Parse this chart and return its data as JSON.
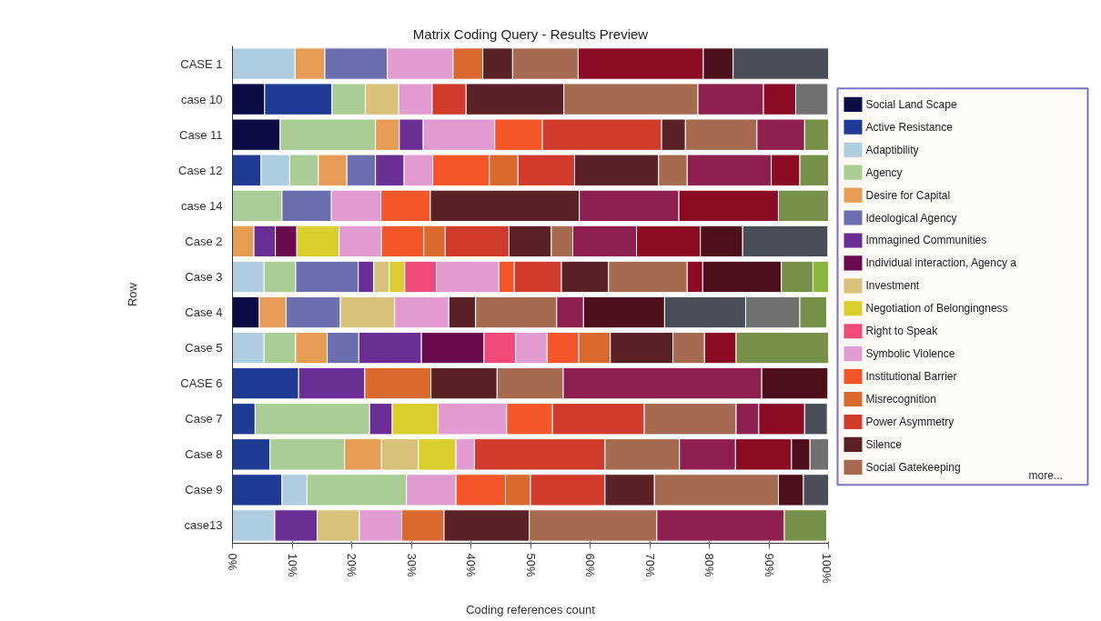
{
  "chart_data": {
    "type": "bar",
    "orientation": "horizontal",
    "stacked": true,
    "title": "Matrix Coding Query - Results Preview",
    "xlabel": "Coding references count",
    "ylabel": "Row",
    "categories": [
      "CASE 1",
      "case 10",
      "Case 11",
      "Case 12",
      "case 14",
      "Case 2",
      "Case 3",
      "Case 4",
      "Case 5",
      "CASE 6",
      "Case 7",
      "Case 8",
      "Case 9",
      "case13"
    ],
    "xlim": [
      0,
      100
    ],
    "xticks": [
      {
        "value": 0,
        "label": "0%"
      },
      {
        "value": 10,
        "label": "10%"
      },
      {
        "value": 20,
        "label": "20%"
      },
      {
        "value": 30,
        "label": "30%"
      },
      {
        "value": 40,
        "label": "40%"
      },
      {
        "value": 50,
        "label": "50%"
      },
      {
        "value": 60,
        "label": "60%"
      },
      {
        "value": 70,
        "label": "70%"
      },
      {
        "value": 80,
        "label": "80%"
      },
      {
        "value": 90,
        "label": "90%"
      },
      {
        "value": 100,
        "label": "100%"
      }
    ],
    "grid": false,
    "legend": "right",
    "annotations": [
      "more..."
    ],
    "series": [
      {
        "name": "Social Land Scape",
        "color": "#0d0d45",
        "values": [
          null,
          5.4,
          8,
          null,
          null,
          null,
          null,
          4.5,
          null,
          null,
          null,
          null,
          null,
          null
        ]
      },
      {
        "name": "Active Resistance",
        "color": "#1f3a93",
        "values": [
          null,
          11.3,
          null,
          4.8,
          null,
          null,
          null,
          null,
          null,
          11.1,
          3.8,
          6.3,
          8.3,
          null
        ]
      },
      {
        "name": "Adaptibility",
        "color": "#aecde0",
        "values": [
          10.5,
          null,
          null,
          4.8,
          null,
          null,
          5.3,
          null,
          5.3,
          null,
          null,
          null,
          4.2,
          7.1
        ]
      },
      {
        "name": "Agency",
        "color": "#a9cd94",
        "values": [
          null,
          5.6,
          16,
          4.8,
          8.3,
          null,
          5.3,
          null,
          5.3,
          null,
          19.2,
          12.5,
          16.7,
          null
        ]
      },
      {
        "name": "Desire for Capital",
        "color": "#e79c55",
        "values": [
          5,
          null,
          4,
          4.8,
          null,
          3.6,
          null,
          4.5,
          5.3,
          null,
          null,
          6.2,
          null,
          null
        ]
      },
      {
        "name": "Ideological Agency",
        "color": "#6b6fb0",
        "values": [
          10.5,
          null,
          null,
          4.8,
          8.3,
          null,
          10.5,
          9.1,
          5.3,
          null,
          null,
          null,
          null,
          null
        ]
      },
      {
        "name": "Immagined Communities",
        "color": "#6b2e94",
        "values": [
          null,
          null,
          4,
          4.8,
          null,
          3.6,
          2.6,
          null,
          10.5,
          11.1,
          3.8,
          null,
          null,
          7.1
        ]
      },
      {
        "name": "Individual interaction, Agency a",
        "color": "#6a0a4f",
        "values": [
          null,
          null,
          null,
          null,
          null,
          3.6,
          null,
          null,
          10.5,
          null,
          null,
          null,
          null,
          null
        ]
      },
      {
        "name": "Investment",
        "color": "#d8c27a",
        "values": [
          null,
          5.6,
          null,
          null,
          null,
          null,
          2.6,
          9.1,
          null,
          null,
          null,
          6.2,
          null,
          7.1
        ]
      },
      {
        "name": "Negotiation of Belongingness",
        "color": "#d9ce2c",
        "values": [
          null,
          null,
          null,
          null,
          null,
          7.1,
          2.6,
          null,
          null,
          null,
          7.7,
          6.3,
          null,
          null
        ]
      },
      {
        "name": "Right to Speak",
        "color": "#f04a7a",
        "values": [
          null,
          null,
          null,
          null,
          null,
          null,
          5.3,
          null,
          5.3,
          null,
          null,
          null,
          null,
          null
        ]
      },
      {
        "name": "Symbolic Violence",
        "color": "#e29bd1",
        "values": [
          11,
          5.6,
          12,
          4.8,
          8.3,
          7.1,
          10.5,
          9.1,
          5.3,
          null,
          11.5,
          3.1,
          8.3,
          7.1
        ]
      },
      {
        "name": "Institutional Barrier",
        "color": "#f4562a",
        "values": [
          null,
          null,
          8,
          9.5,
          8.3,
          7.1,
          2.6,
          null,
          5.3,
          null,
          7.7,
          null,
          8.3,
          null
        ]
      },
      {
        "name": "Misrecognition",
        "color": "#d9692e",
        "values": [
          5,
          null,
          null,
          4.8,
          null,
          3.6,
          null,
          null,
          5.3,
          11.1,
          null,
          null,
          4.2,
          7.1
        ]
      },
      {
        "name": "Power  Asymmetry",
        "color": "#d13b2b",
        "values": [
          null,
          5.7,
          20,
          9.5,
          null,
          10.7,
          7.9,
          null,
          null,
          null,
          15.4,
          21.9,
          12.5,
          null
        ]
      },
      {
        "name": "Silence",
        "color": "#5a2226",
        "values": [
          5,
          16.4,
          4,
          14.1,
          25,
          7.1,
          7.9,
          4.5,
          10.5,
          11.1,
          null,
          null,
          8.3,
          14.3
        ]
      },
      {
        "name": "Social Gatekeeping",
        "color": "#a56a4f",
        "values": [
          11,
          22.5,
          12,
          4.8,
          null,
          3.6,
          13.2,
          13.6,
          5.3,
          11.1,
          15.4,
          12.5,
          20.8,
          21.4
        ]
      },
      {
        "color": "#8e2050",
        "values": [
          null,
          11,
          8,
          14.1,
          16.7,
          10.7,
          null,
          4.5,
          null,
          33.3,
          3.8,
          9.4,
          null,
          21.4
        ]
      },
      {
        "color": "#8b0a24",
        "values": [
          21,
          5.4,
          null,
          4.8,
          16.7,
          10.7,
          2.6,
          null,
          5.3,
          null,
          7.7,
          9.4,
          null,
          null
        ]
      },
      {
        "color": "#4d0f1c",
        "values": [
          5,
          null,
          null,
          null,
          null,
          7.1,
          13.2,
          13.6,
          null,
          11.1,
          null,
          3.1,
          4.2,
          null
        ]
      },
      {
        "color": "#4a4e57",
        "values": [
          16,
          null,
          null,
          null,
          null,
          14.3,
          null,
          13.6,
          null,
          null,
          3.8,
          null,
          4.2,
          null
        ]
      },
      {
        "color": "#707070",
        "values": [
          null,
          5.4,
          null,
          null,
          null,
          null,
          null,
          9.1,
          null,
          null,
          null,
          3.1,
          null,
          null
        ]
      },
      {
        "color": "#76904a",
        "values": [
          null,
          null,
          4,
          4.8,
          8.4,
          null,
          5.3,
          4.5,
          15.5,
          null,
          null,
          null,
          null,
          7.1
        ]
      },
      {
        "color": "#8ab83e",
        "values": [
          null,
          null,
          null,
          null,
          null,
          null,
          2.6,
          null,
          null,
          null,
          null,
          null,
          null,
          null
        ]
      }
    ]
  }
}
